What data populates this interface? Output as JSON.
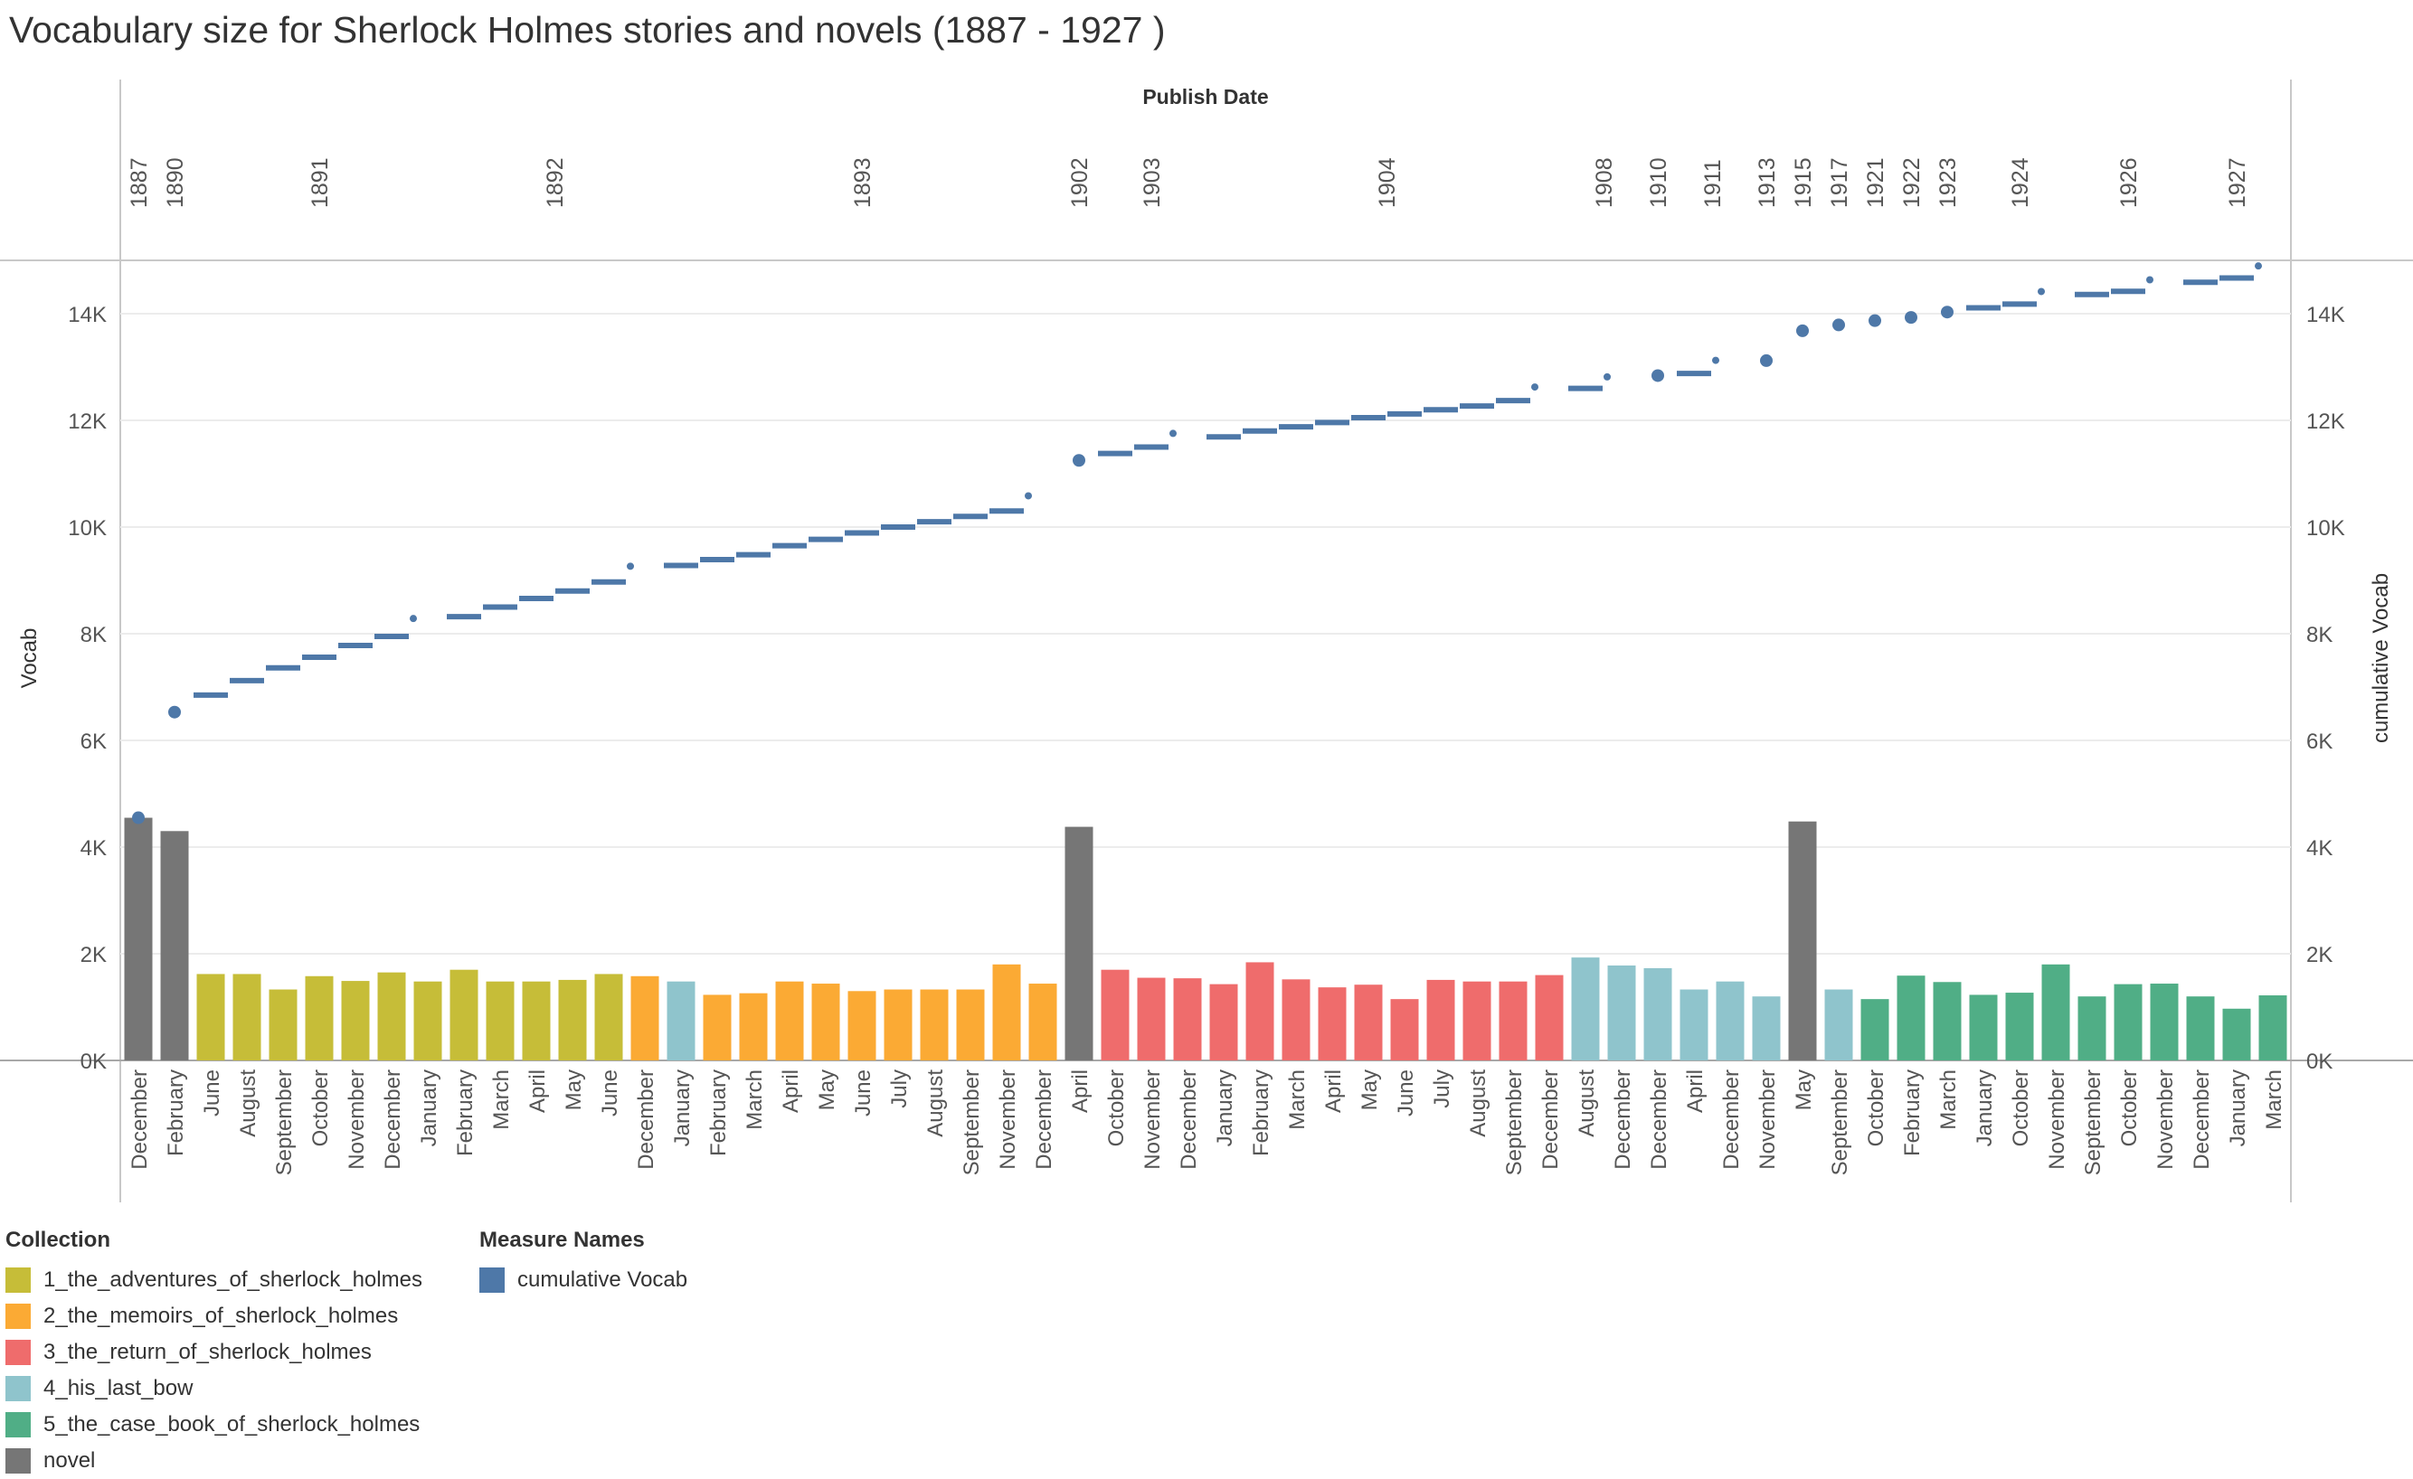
{
  "chart_data": {
    "type": "bar",
    "title": "Vocabulary size for Sherlock Holmes stories and novels (1887 - 1927 )",
    "top_axis_title": "Publish Date",
    "ylabel_left": "Vocab",
    "ylabel_right": "cumulative Vocab",
    "ylim": [
      0,
      15000
    ],
    "yticks": [
      0,
      2000,
      4000,
      6000,
      8000,
      10000,
      12000,
      14000
    ],
    "ytick_labels": [
      "0K",
      "2K",
      "4K",
      "6K",
      "8K",
      "10K",
      "12K",
      "14K"
    ],
    "grid": true,
    "years": [
      {
        "label": "1887",
        "start": 0,
        "end": 0
      },
      {
        "label": "1890",
        "start": 1,
        "end": 1
      },
      {
        "label": "1891",
        "start": 2,
        "end": 8
      },
      {
        "label": "1892",
        "start": 9,
        "end": 14
      },
      {
        "label": "1893",
        "start": 15,
        "end": 25
      },
      {
        "label": "1902",
        "start": 26,
        "end": 26
      },
      {
        "label": "1903",
        "start": 27,
        "end": 29
      },
      {
        "label": "1904",
        "start": 30,
        "end": 39
      },
      {
        "label": "1908",
        "start": 40,
        "end": 41
      },
      {
        "label": "1910",
        "start": 42,
        "end": 42
      },
      {
        "label": "1911",
        "start": 43,
        "end": 44
      },
      {
        "label": "1913",
        "start": 45,
        "end": 45
      },
      {
        "label": "1915",
        "start": 46,
        "end": 46
      },
      {
        "label": "1917",
        "start": 47,
        "end": 47
      },
      {
        "label": "1921",
        "start": 48,
        "end": 48
      },
      {
        "label": "1922",
        "start": 49,
        "end": 49
      },
      {
        "label": "1923",
        "start": 50,
        "end": 50
      },
      {
        "label": "1924",
        "start": 51,
        "end": 53
      },
      {
        "label": "1926",
        "start": 54,
        "end": 56
      },
      {
        "label": "1927",
        "start": 57,
        "end": 59
      }
    ],
    "months": [
      "December",
      "February",
      "June",
      "August",
      "September",
      "October",
      "November",
      "December",
      "January",
      "February",
      "March",
      "April",
      "May",
      "June",
      "December",
      "January",
      "February",
      "March",
      "April",
      "May",
      "June",
      "July",
      "August",
      "September",
      "November",
      "December",
      "April",
      "October",
      "November",
      "December",
      "January",
      "February",
      "March",
      "April",
      "May",
      "June",
      "July",
      "August",
      "September",
      "December",
      "August",
      "December",
      "December",
      "April",
      "December",
      "November",
      "May",
      "September",
      "October",
      "February",
      "March",
      "January",
      "October",
      "November",
      "September",
      "October",
      "November",
      "December",
      "January",
      "March"
    ],
    "collection": [
      "novel",
      "novel",
      "1",
      "1",
      "1",
      "1",
      "1",
      "1",
      "1",
      "1",
      "1",
      "1",
      "1",
      "1",
      "2",
      "4",
      "2",
      "2",
      "2",
      "2",
      "2",
      "2",
      "2",
      "2",
      "2",
      "2",
      "novel",
      "3",
      "3",
      "3",
      "3",
      "3",
      "3",
      "3",
      "3",
      "3",
      "3",
      "3",
      "3",
      "3",
      "4",
      "4",
      "4",
      "4",
      "4",
      "4",
      "novel",
      "4",
      "5",
      "5",
      "5",
      "5",
      "5",
      "5",
      "5",
      "5",
      "5",
      "5",
      "5",
      "5"
    ],
    "vocab": [
      4550,
      4300,
      1620,
      1620,
      1330,
      1580,
      1490,
      1650,
      1480,
      1700,
      1480,
      1480,
      1510,
      1620,
      1580,
      1480,
      1230,
      1260,
      1480,
      1440,
      1300,
      1330,
      1330,
      1330,
      1800,
      1440,
      4380,
      1700,
      1550,
      1540,
      1430,
      1840,
      1520,
      1370,
      1420,
      1150,
      1510,
      1480,
      1480,
      1600,
      1930,
      1780,
      1730,
      1330,
      1480,
      1200,
      4480,
      1330,
      1150,
      1590,
      1470,
      1230,
      1270,
      1800,
      1200,
      1430,
      1440,
      1200,
      970,
      1220
    ],
    "cumulative_vocab": [
      4550,
      6530,
      6850,
      7120,
      7360,
      7560,
      7780,
      7950,
      8150,
      8320,
      8500,
      8660,
      8800,
      8970,
      9130,
      9280,
      9390,
      9480,
      9650,
      9770,
      9890,
      10000,
      10100,
      10200,
      10300,
      10450,
      11250,
      11380,
      11500,
      11620,
      11690,
      11800,
      11880,
      11960,
      12050,
      12120,
      12200,
      12270,
      12370,
      12490,
      12600,
      12680,
      12840,
      12880,
      12990,
      13120,
      13680,
      13790,
      13870,
      13930,
      14030,
      14110,
      14180,
      14280,
      14360,
      14420,
      14500,
      14590,
      14670,
      14760
    ],
    "series_colors": {
      "1": "#c6bd38",
      "2": "#fbaa34",
      "3": "#ef6c6c",
      "4": "#8fc4cc",
      "5": "#50ae86",
      "novel": "#767676",
      "cumulative": "#4e78a8"
    }
  },
  "legend_collection": {
    "title": "Collection",
    "items": [
      {
        "label": "1_the_adventures_of_sherlock_holmes",
        "color": "#c6bd38"
      },
      {
        "label": "2_the_memoirs_of_sherlock_holmes",
        "color": "#fbaa34"
      },
      {
        "label": "3_the_return_of_sherlock_holmes",
        "color": "#ef6c6c"
      },
      {
        "label": "4_his_last_bow",
        "color": "#8fc4cc"
      },
      {
        "label": "5_the_case_book_of_sherlock_holmes",
        "color": "#50ae86"
      },
      {
        "label": "novel",
        "color": "#767676"
      }
    ]
  },
  "legend_measure": {
    "title": "Measure Names",
    "items": [
      {
        "label": "cumulative Vocab",
        "color": "#4e78a8"
      }
    ]
  }
}
